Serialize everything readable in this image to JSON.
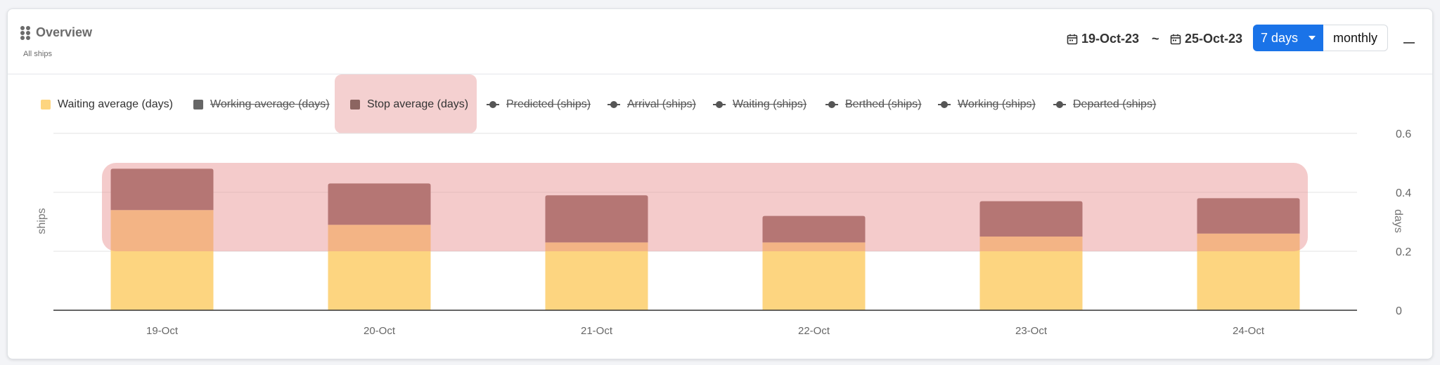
{
  "header": {
    "title": "Overview",
    "subtitle": "All ships",
    "date_from": "19-Oct-23",
    "date_separator": "~",
    "date_to": "25-Oct-23",
    "range_selected": "7 days",
    "range_alt": "monthly"
  },
  "legend": [
    {
      "label": "Waiting average (days)",
      "marker": "square",
      "color": "#fdd580",
      "enabled": true
    },
    {
      "label": "Working average (days)",
      "marker": "square",
      "color": "#666666",
      "enabled": false
    },
    {
      "label": "Stop average (days)",
      "marker": "square",
      "color": "#8c6561",
      "enabled": true
    },
    {
      "label": "Predicted (ships)",
      "marker": "line",
      "color": "#555555",
      "enabled": false
    },
    {
      "label": "Arrival (ships)",
      "marker": "line",
      "color": "#555555",
      "enabled": false
    },
    {
      "label": "Waiting (ships)",
      "marker": "line",
      "color": "#555555",
      "enabled": false
    },
    {
      "label": "Berthed (ships)",
      "marker": "line",
      "color": "#555555",
      "enabled": false
    },
    {
      "label": "Working (ships)",
      "marker": "line",
      "color": "#555555",
      "enabled": false
    },
    {
      "label": "Departed (ships)",
      "marker": "line",
      "color": "#555555",
      "enabled": false
    }
  ],
  "chart_data": {
    "type": "bar",
    "stacked": true,
    "categories": [
      "19-Oct",
      "20-Oct",
      "21-Oct",
      "22-Oct",
      "23-Oct",
      "24-Oct"
    ],
    "series": [
      {
        "name": "Waiting average (days)",
        "color": "#fdd580",
        "values": [
          0.34,
          0.29,
          0.23,
          0.23,
          0.25,
          0.26
        ]
      },
      {
        "name": "Stop average (days)",
        "color": "#8c6561",
        "values": [
          0.14,
          0.14,
          0.16,
          0.09,
          0.12,
          0.12
        ]
      }
    ],
    "ylabel_left": "ships",
    "ylabel_right": "days",
    "y_right_ticks": [
      "0",
      "0.2",
      "0.4",
      "0.6"
    ],
    "ylim": [
      0,
      0.6
    ],
    "grid": true
  },
  "colors": {
    "accent": "#1a73e8",
    "highlight": "#f2c4c4"
  }
}
